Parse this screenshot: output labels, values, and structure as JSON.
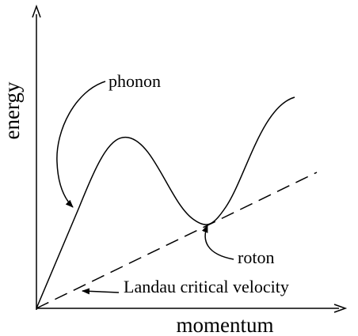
{
  "axes": {
    "x_label": "momentum",
    "y_label": "energy"
  },
  "annotations": {
    "phonon": "phonon",
    "roton": "roton",
    "landau": "Landau critical velocity"
  },
  "colors": {
    "ink": "#000000",
    "background": "#ffffff"
  }
}
